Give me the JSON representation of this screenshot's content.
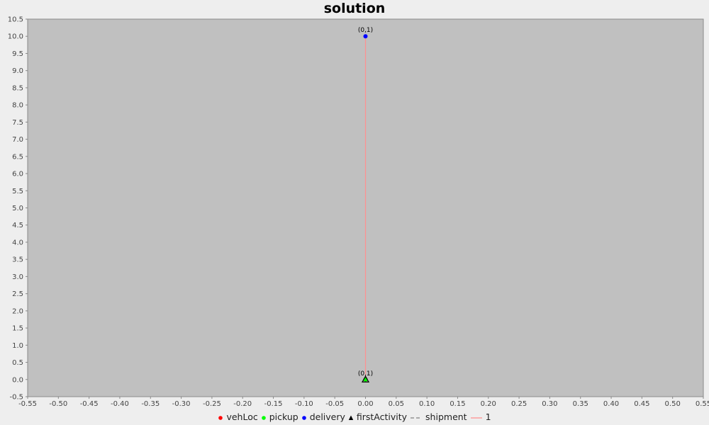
{
  "chart_data": {
    "type": "scatter",
    "title": "solution",
    "xlabel": "",
    "ylabel": "",
    "xlim": [
      -0.55,
      0.55
    ],
    "ylim": [
      -0.5,
      10.5
    ],
    "x_ticks": [
      "-0.55",
      "-0.50",
      "-0.45",
      "-0.40",
      "-0.35",
      "-0.30",
      "-0.25",
      "-0.20",
      "-0.15",
      "-0.10",
      "-0.05",
      "0.00",
      "0.05",
      "0.10",
      "0.15",
      "0.20",
      "0.25",
      "0.30",
      "0.35",
      "0.40",
      "0.45",
      "0.50",
      "0.55"
    ],
    "y_ticks": [
      "-0.5",
      "0.0",
      "0.5",
      "1.0",
      "1.5",
      "2.0",
      "2.5",
      "3.0",
      "3.5",
      "4.0",
      "4.5",
      "5.0",
      "5.5",
      "6.0",
      "6.5",
      "7.0",
      "7.5",
      "8.0",
      "8.5",
      "9.0",
      "9.5",
      "10.0",
      "10.5"
    ],
    "grid": false,
    "background": "#c0c0c0",
    "legend_position": "bottom",
    "series": [
      {
        "name": "vehLoc",
        "color": "#ff0000",
        "marker": "circle",
        "points": [
          {
            "x": 0.0,
            "y": 0.0
          }
        ]
      },
      {
        "name": "pickup",
        "color": "#00ff00",
        "marker": "circle",
        "points": [
          {
            "x": 0.0,
            "y": 0.0,
            "label": "(0,1)"
          }
        ]
      },
      {
        "name": "delivery",
        "color": "#0000ff",
        "marker": "circle",
        "points": [
          {
            "x": 0.0,
            "y": 10.0,
            "label": "(0,1)"
          }
        ]
      },
      {
        "name": "firstActivity",
        "color": "#000000",
        "marker": "triangle",
        "points": [
          {
            "x": 0.0,
            "y": 0.0
          }
        ]
      },
      {
        "name": "shipment",
        "color": "#808080",
        "line": "dashed",
        "points": [
          {
            "x": 0.0,
            "y": 0.0
          },
          {
            "x": 0.0,
            "y": 10.0
          }
        ]
      },
      {
        "name": "1",
        "color": "#ff9090",
        "line": "solid",
        "points": [
          {
            "x": 0.0,
            "y": 0.0
          },
          {
            "x": 0.0,
            "y": 10.0
          }
        ]
      }
    ]
  }
}
